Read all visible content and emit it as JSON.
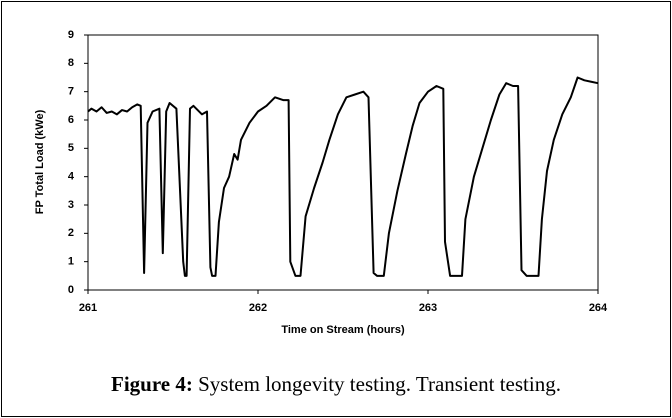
{
  "chart_data": {
    "type": "line",
    "xlabel": "Time on Stream (hours)",
    "ylabel": "FP Total Load (kWe)",
    "x": [
      261.0,
      261.02,
      261.05,
      261.08,
      261.11,
      261.14,
      261.17,
      261.2,
      261.23,
      261.26,
      261.29,
      261.31,
      261.33,
      261.35,
      261.38,
      261.42,
      261.44,
      261.46,
      261.48,
      261.52,
      261.56,
      261.57,
      261.58,
      261.6,
      261.62,
      261.67,
      261.7,
      261.72,
      261.73,
      261.75,
      261.77,
      261.8,
      261.83,
      261.86,
      261.88,
      261.9,
      261.95,
      262.0,
      262.05,
      262.1,
      262.15,
      262.18,
      262.19,
      262.22,
      262.25,
      262.28,
      262.33,
      262.38,
      262.42,
      262.47,
      262.52,
      262.57,
      262.62,
      262.65,
      262.68,
      262.7,
      262.74,
      262.77,
      262.82,
      262.87,
      262.91,
      262.95,
      263.0,
      263.05,
      263.09,
      263.1,
      263.13,
      263.2,
      263.22,
      263.27,
      263.32,
      263.37,
      263.42,
      263.46,
      263.5,
      263.53,
      263.55,
      263.58,
      263.65,
      263.67,
      263.7,
      263.74,
      263.79,
      263.84,
      263.88,
      263.92,
      263.96,
      264.0
    ],
    "series": [
      {
        "name": "FP Total Load",
        "color": "#000000",
        "values": [
          6.3,
          6.4,
          6.3,
          6.45,
          6.25,
          6.3,
          6.2,
          6.35,
          6.3,
          6.45,
          6.55,
          6.5,
          0.6,
          5.9,
          6.3,
          6.4,
          1.3,
          6.3,
          6.6,
          6.4,
          1.0,
          0.5,
          0.5,
          6.4,
          6.5,
          6.2,
          6.3,
          0.8,
          0.5,
          0.5,
          2.4,
          3.6,
          4.0,
          4.8,
          4.6,
          5.3,
          5.9,
          6.3,
          6.5,
          6.8,
          6.7,
          6.7,
          1.0,
          0.5,
          0.5,
          2.6,
          3.6,
          4.5,
          5.3,
          6.2,
          6.8,
          6.9,
          7.0,
          6.8,
          0.6,
          0.5,
          0.5,
          2.0,
          3.5,
          4.8,
          5.8,
          6.6,
          7.0,
          7.2,
          7.1,
          1.7,
          0.5,
          0.5,
          2.5,
          4.0,
          5.0,
          6.0,
          6.9,
          7.3,
          7.2,
          7.2,
          0.7,
          0.5,
          0.5,
          2.5,
          4.2,
          5.3,
          6.2,
          6.8,
          7.5,
          7.4,
          7.35,
          7.3
        ]
      }
    ],
    "xlim": [
      261,
      264
    ],
    "xticks": [
      261,
      262,
      263,
      264
    ],
    "ylim": [
      0,
      9
    ],
    "yticks": [
      0,
      1,
      2,
      3,
      4,
      5,
      6,
      7,
      8,
      9
    ],
    "grid": false
  },
  "caption": {
    "label": "Figure 4:",
    "text": "System longevity testing. Transient testing."
  }
}
